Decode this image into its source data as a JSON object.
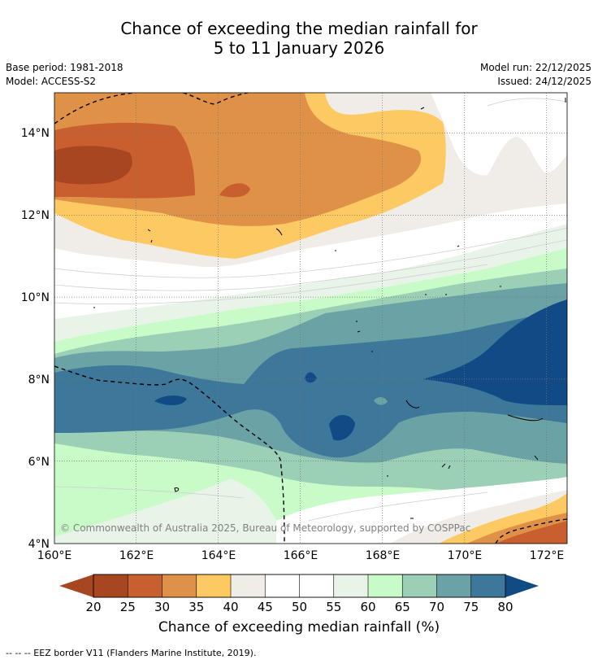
{
  "title_line1": "Chance of exceeding the median rainfall for",
  "title_line2": "5 to 11 January 2026",
  "base_period": "Base period: 1981-2018",
  "model": "Model: ACCESS-S2",
  "model_run": "Model run: 22/12/2025",
  "issued": "Issued: 24/12/2025",
  "copyright": "© Commonwealth of Australia 2025, Bureau of Meteorology, supported by COSPPac",
  "x_ticks": [
    "160°E",
    "162°E",
    "164°E",
    "166°E",
    "168°E",
    "170°E",
    "172°E"
  ],
  "y_ticks": [
    "14°N",
    "12°N",
    "10°N",
    "8°N",
    "6°N",
    "4°N"
  ],
  "colorbar": {
    "title": "Chance of exceeding median rainfall (%)",
    "ticks": [
      "20",
      "25",
      "30",
      "35",
      "40",
      "45",
      "50",
      "55",
      "60",
      "65",
      "70",
      "75",
      "80"
    ],
    "colors": [
      "#a84622",
      "#c95f2f",
      "#e09148",
      "#fdc962",
      "#f0ece7",
      "#ffffff",
      "#ffffff",
      "#e9f4e8",
      "#c8fbc8",
      "#9bcfb6",
      "#6aa2a6",
      "#3d7799"
    ],
    "under_color": "#a84622",
    "over_color": "#124a86"
  },
  "footnote": "--  --  -- EEZ border V11 (Flanders Marine Institute, 2019).",
  "lon_range": [
    160,
    172.5
  ],
  "lat_range": [
    4,
    15
  ]
}
